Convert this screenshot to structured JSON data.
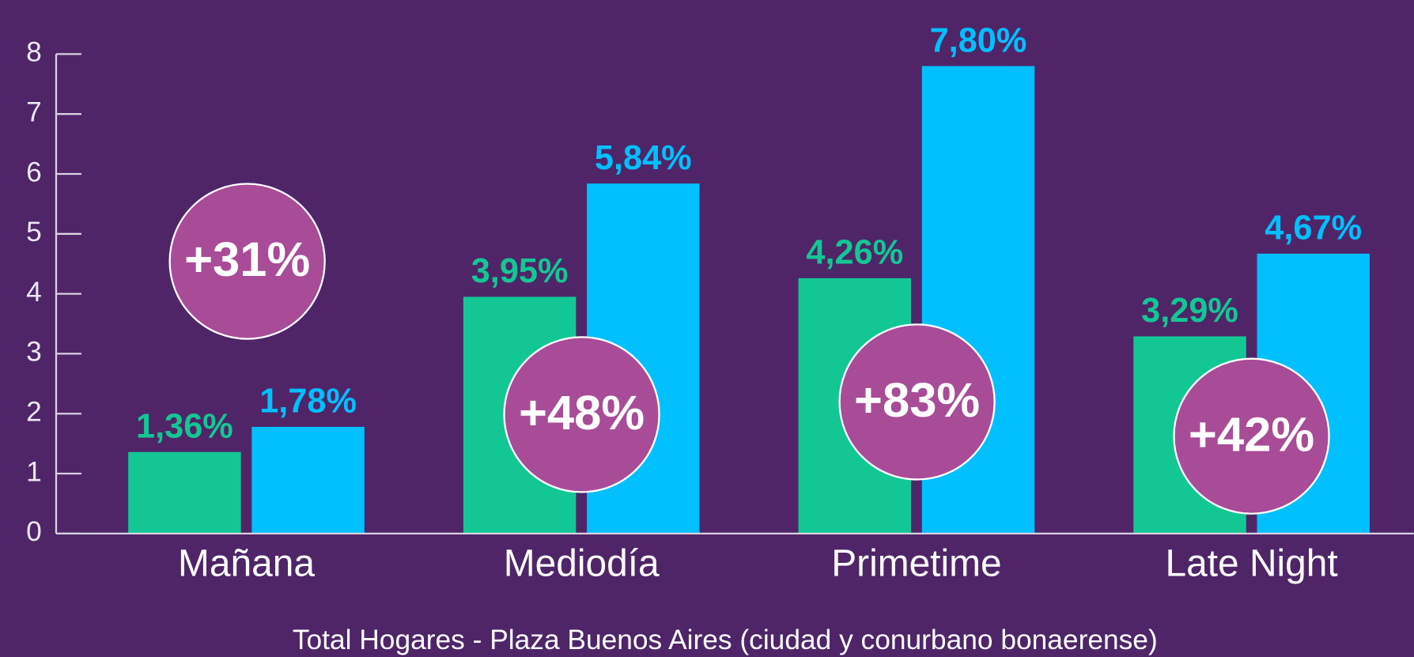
{
  "chart_data": {
    "type": "bar",
    "categories": [
      "Mañana",
      "Mediodía",
      "Primetime",
      "Late Night"
    ],
    "series": [
      {
        "color": "#13c795",
        "values": [
          1.36,
          3.95,
          4.26,
          3.29
        ],
        "value_labels": [
          "1,36%",
          "3,95%",
          "4,26%",
          "3,29%"
        ]
      },
      {
        "color": "#00c0ff",
        "values": [
          1.78,
          5.84,
          7.8,
          4.67
        ],
        "value_labels": [
          "1,78%",
          "5,84%",
          "7,80%",
          "4,67%"
        ]
      }
    ],
    "annotations": [
      "+31%",
      "+48%",
      "+83%",
      "+42%"
    ],
    "x_label": "Total Hogares - Plaza Buenos Aires (ciudad y conurbano bonaerense)",
    "ylim": [
      0,
      8
    ],
    "yticks": [
      0,
      1,
      2,
      3,
      4,
      5,
      6,
      7,
      8
    ]
  }
}
